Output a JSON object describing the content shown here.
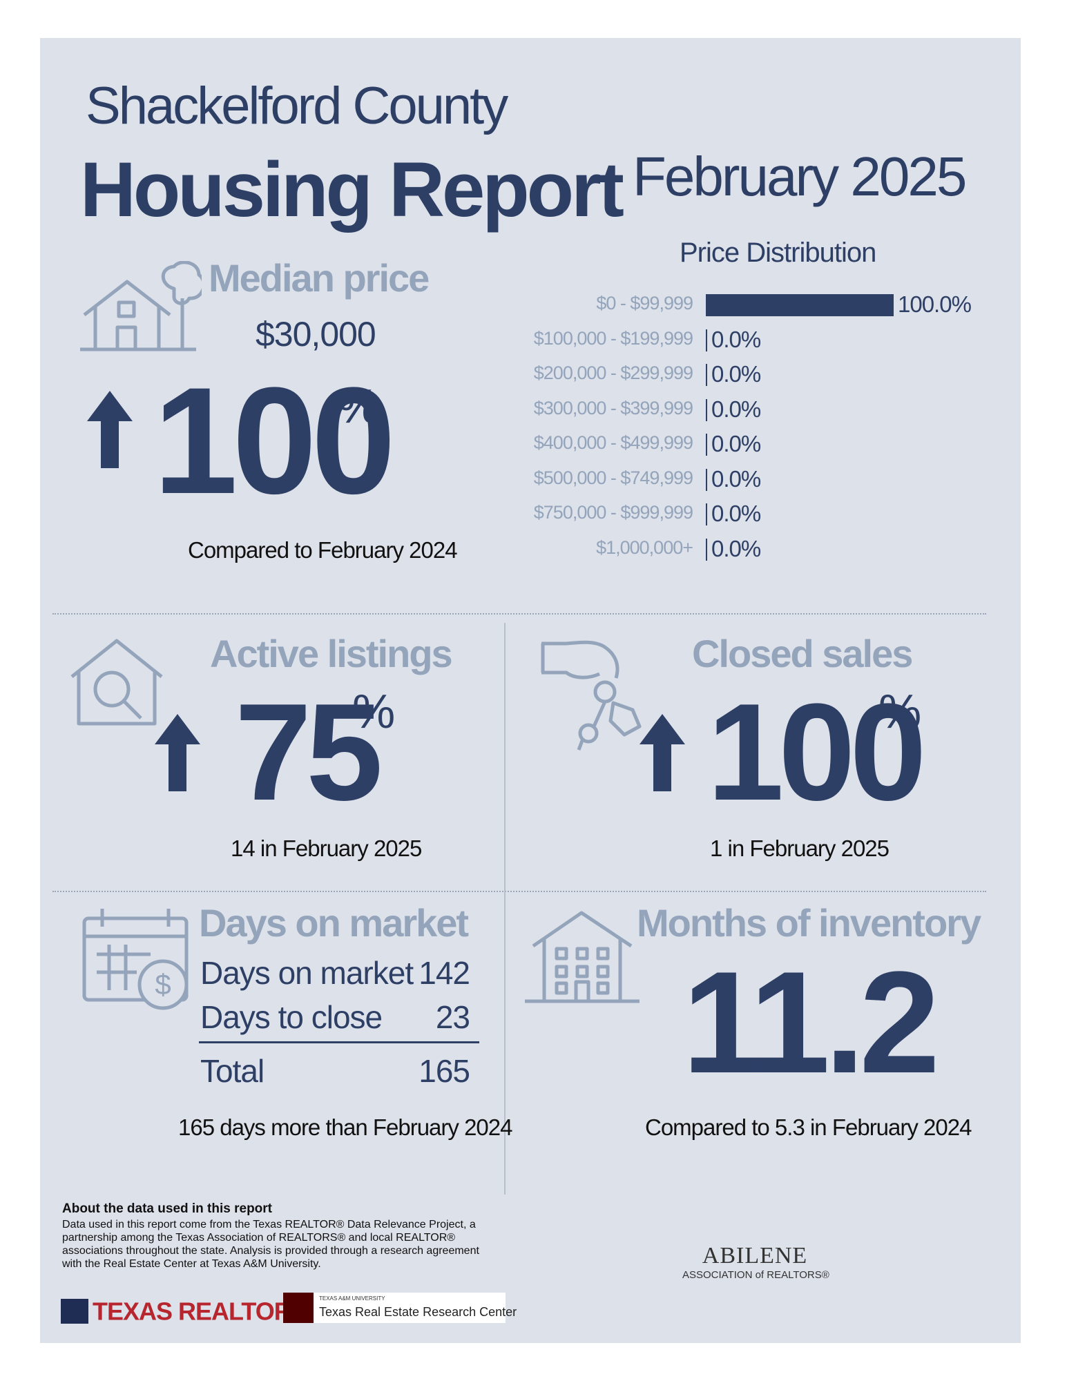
{
  "header": {
    "county": "Shackelford County",
    "report_title": "Housing Report",
    "month": "February 2025"
  },
  "median_price": {
    "heading": "Median price",
    "value": "$30,000",
    "change": "100",
    "pct_symbol": "%",
    "direction": "up",
    "caption": "Compared to February 2024"
  },
  "price_distribution": {
    "title": "Price Distribution",
    "chart_data": {
      "type": "bar",
      "categories": [
        "$0 - $99,999",
        "$100,000 - $199,999",
        "$200,000 - $299,999",
        "$300,000 - $399,999",
        "$400,000 - $499,999",
        "$500,000 - $749,999",
        "$750,000 - $999,999",
        "$1,000,000+"
      ],
      "values": [
        100.0,
        0.0,
        0.0,
        0.0,
        0.0,
        0.0,
        0.0,
        0.0
      ],
      "labels": [
        "100.0%",
        "0.0%",
        "0.0%",
        "0.0%",
        "0.0%",
        "0.0%",
        "0.0%",
        "0.0%"
      ],
      "title": "Price Distribution",
      "xlim": [
        0,
        100
      ]
    }
  },
  "active_listings": {
    "heading": "Active listings",
    "change": "75",
    "pct_symbol": "%",
    "direction": "up",
    "caption": "14 in February 2025"
  },
  "closed_sales": {
    "heading": "Closed sales",
    "change": "100",
    "pct_symbol": "%",
    "direction": "up",
    "caption": "1 in February 2025"
  },
  "days_on_market": {
    "heading": "Days on market",
    "rows": [
      {
        "label": "Days on market",
        "value": "142"
      },
      {
        "label": "Days to close",
        "value": "23"
      }
    ],
    "total_label": "Total",
    "total_value": "165",
    "caption": "165 days more than February 2024"
  },
  "months_inventory": {
    "heading": "Months of inventory",
    "value": "11.2",
    "caption": "Compared to 5.3 in February 2024"
  },
  "about": {
    "heading": "About the data used in this report",
    "text": "Data used in this report come from the Texas REALTOR® Data Relevance Project, a partnership among the Texas Association of REALTORS® and local REALTOR® associations throughout the state. Analysis is provided through a research agreement with the Real Estate Center at Texas A&M University."
  },
  "logos": {
    "texas_realtors": "TEXAS REALTORS",
    "tamu_small": "TEXAS A&M UNIVERSITY",
    "tamu_name": "Texas Real Estate Research Center",
    "abilene_name": "ABILENE",
    "abilene_sub": "ASSOCIATION of REALTORS®"
  },
  "colors": {
    "navy": "#2e3f66",
    "light": "#93a4bb",
    "background": "#dde1e9",
    "red": "#b7262e"
  }
}
